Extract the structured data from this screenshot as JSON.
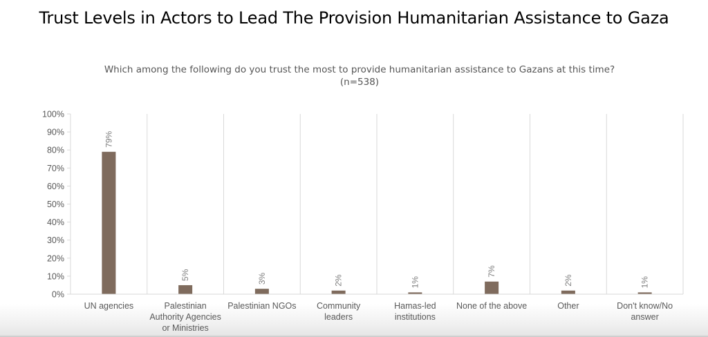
{
  "page": {
    "title": "Trust Levels in Actors to Lead The Provision Humanitarian Assistance to Gaza"
  },
  "chart_data": {
    "type": "bar",
    "title": "Which among the following do you trust the most to provide humanitarian assistance to Gazans at this time?",
    "subtitle": "(n=538)",
    "xlabel": "",
    "ylabel": "",
    "ylim": [
      0,
      100
    ],
    "yticks": [
      0,
      10,
      20,
      30,
      40,
      50,
      60,
      70,
      80,
      90,
      100
    ],
    "ytick_format": "percent",
    "grid": "vertical category separators",
    "legend": "none",
    "bar_color": "#7f6b5d",
    "categories": [
      "UN agencies",
      "Palestinian Authority Agencies or Ministries",
      "Palestinian NGOs",
      "Community leaders",
      "Hamas-led institutions",
      "None of the above",
      "Other",
      "Don't know/No answer"
    ],
    "category_lines": [
      [
        "UN agencies"
      ],
      [
        "Palestinian",
        "Authority Agencies",
        "or Ministries"
      ],
      [
        "Palestinian NGOs"
      ],
      [
        "Community",
        "leaders"
      ],
      [
        "Hamas-led",
        "institutions"
      ],
      [
        "None of the above"
      ],
      [
        "Other"
      ],
      [
        "Don't know/No",
        "answer"
      ]
    ],
    "values": [
      79,
      5,
      3,
      2,
      1,
      7,
      2,
      1
    ],
    "data_labels": [
      "79%",
      "5%",
      "3%",
      "2%",
      "1%",
      "7%",
      "2%",
      "1%"
    ]
  }
}
